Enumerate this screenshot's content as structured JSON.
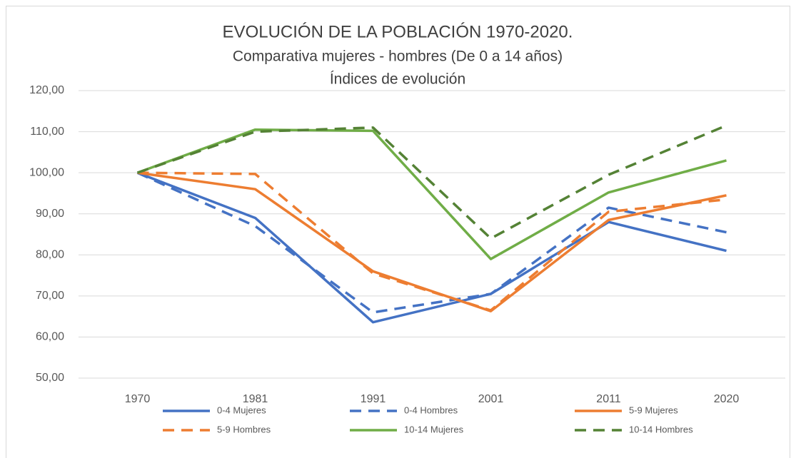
{
  "chart_data": {
    "type": "line",
    "title": "EVOLUCIÓN DE LA POBLACIÓN 1970-2020.",
    "subtitle": [
      "Comparativa mujeres - hombres (De 0 a 14 años)",
      "Índices de evolución"
    ],
    "categories": [
      "1970",
      "1981",
      "1991",
      "2001",
      "2011",
      "2020"
    ],
    "ylim": [
      50,
      120
    ],
    "yticks": [
      {
        "value": 50,
        "label": "50,00"
      },
      {
        "value": 60,
        "label": "60,00"
      },
      {
        "value": 70,
        "label": "70,00"
      },
      {
        "value": 80,
        "label": "80,00"
      },
      {
        "value": 90,
        "label": "90,00"
      },
      {
        "value": 100,
        "label": "100,00"
      },
      {
        "value": 110,
        "label": "110,00"
      },
      {
        "value": 120,
        "label": "120,00"
      }
    ],
    "grid": true,
    "legend": "bottom",
    "series": [
      {
        "name": "0-4 Mujeres",
        "color": "#4472c4",
        "dashed": false,
        "values": [
          100,
          89,
          63.6,
          70.5,
          88,
          81
        ]
      },
      {
        "name": "0-4 Hombres",
        "color": "#4472c4",
        "dashed": true,
        "values": [
          100,
          87,
          66,
          70.5,
          91.5,
          85.5
        ]
      },
      {
        "name": "5-9 Mujeres",
        "color": "#ed7d31",
        "dashed": false,
        "values": [
          100,
          96,
          76,
          66.3,
          88.5,
          94.5
        ]
      },
      {
        "name": "5-9 Hombres",
        "color": "#ed7d31",
        "dashed": true,
        "values": [
          100,
          99.7,
          75.5,
          66.5,
          90.5,
          93.5
        ]
      },
      {
        "name": "10-14 Mujeres",
        "color": "#70ad47",
        "dashed": false,
        "values": [
          100,
          110.5,
          110.2,
          79,
          95.2,
          103
        ]
      },
      {
        "name": "10-14 Hombres",
        "color": "#548235",
        "dashed": true,
        "values": [
          100,
          110,
          111,
          84,
          99.5,
          111.5
        ]
      }
    ]
  }
}
